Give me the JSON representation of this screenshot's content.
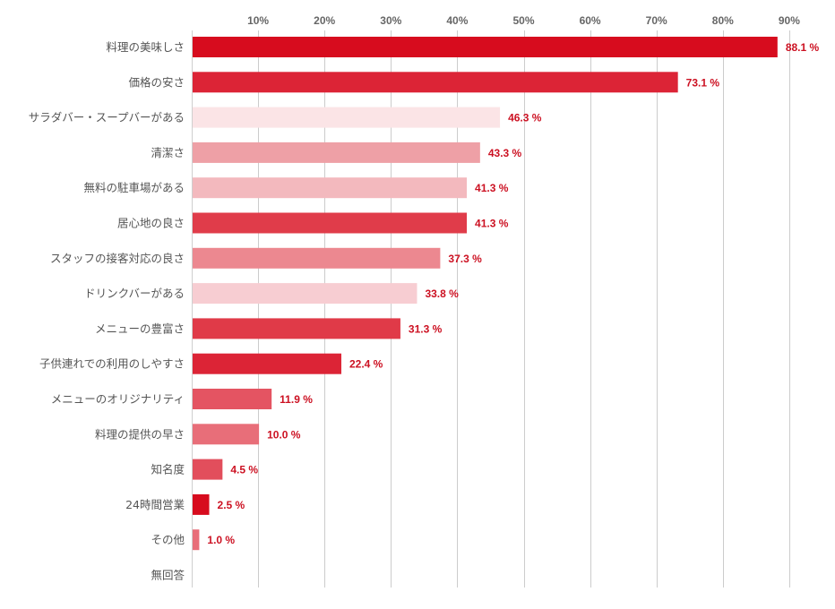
{
  "chart_data": {
    "type": "bar",
    "orientation": "horizontal",
    "title": "",
    "xlabel": "",
    "ylabel": "",
    "xlim": [
      0,
      90
    ],
    "grid": true,
    "unit_suffix": " %",
    "ticks": [
      {
        "value": 10,
        "label": "10%"
      },
      {
        "value": 20,
        "label": "20%"
      },
      {
        "value": 30,
        "label": "30%"
      },
      {
        "value": 40,
        "label": "40%"
      },
      {
        "value": 50,
        "label": "50%"
      },
      {
        "value": 60,
        "label": "60%"
      },
      {
        "value": 70,
        "label": "70%"
      },
      {
        "value": 80,
        "label": "80%"
      },
      {
        "value": 90,
        "label": "90%"
      }
    ],
    "bars": [
      {
        "category": "料理の美味しさ",
        "value": 88.1,
        "label": "88.1 %",
        "color": "#d70c1e"
      },
      {
        "category": "価格の安さ",
        "value": 73.1,
        "label": "73.1 %",
        "color": "#dc2436"
      },
      {
        "category": "サラダバー・スープバーがある",
        "value": 46.3,
        "label": "46.3 %",
        "color": "#fbe4e6"
      },
      {
        "category": "清潔さ",
        "value": 43.3,
        "label": "43.3 %",
        "color": "#eea0a6"
      },
      {
        "category": "無料の駐車場がある",
        "value": 41.3,
        "label": "41.3 %",
        "color": "#f3b9be"
      },
      {
        "category": "居心地の良さ",
        "value": 41.3,
        "label": "41.3 %",
        "color": "#e03c4a"
      },
      {
        "category": "スタッフの接客対応の良さ",
        "value": 37.3,
        "label": "37.3 %",
        "color": "#ec8890"
      },
      {
        "category": "ドリンクバーがある",
        "value": 33.8,
        "label": "33.8 %",
        "color": "#f7cdd2"
      },
      {
        "category": "メニューの豊富さ",
        "value": 31.3,
        "label": "31.3 %",
        "color": "#e03a48"
      },
      {
        "category": "子供連れでの利用のしやすさ",
        "value": 22.4,
        "label": "22.4 %",
        "color": "#dc2436"
      },
      {
        "category": "メニューのオリジナリティ",
        "value": 11.9,
        "label": "11.9 %",
        "color": "#e45462"
      },
      {
        "category": "料理の提供の早さ",
        "value": 10.0,
        "label": "10.0 %",
        "color": "#e86e79"
      },
      {
        "category": "知名度",
        "value": 4.5,
        "label": "4.5 %",
        "color": "#e24e5c"
      },
      {
        "category": "24時間営業",
        "value": 2.5,
        "label": "2.5 %",
        "color": "#d70c1e"
      },
      {
        "category": "その他",
        "value": 1.0,
        "label": "1.0 %",
        "color": "#e86e79"
      },
      {
        "category": "無回答",
        "value": 0.0,
        "label": "",
        "color": "#e86e79"
      }
    ]
  }
}
